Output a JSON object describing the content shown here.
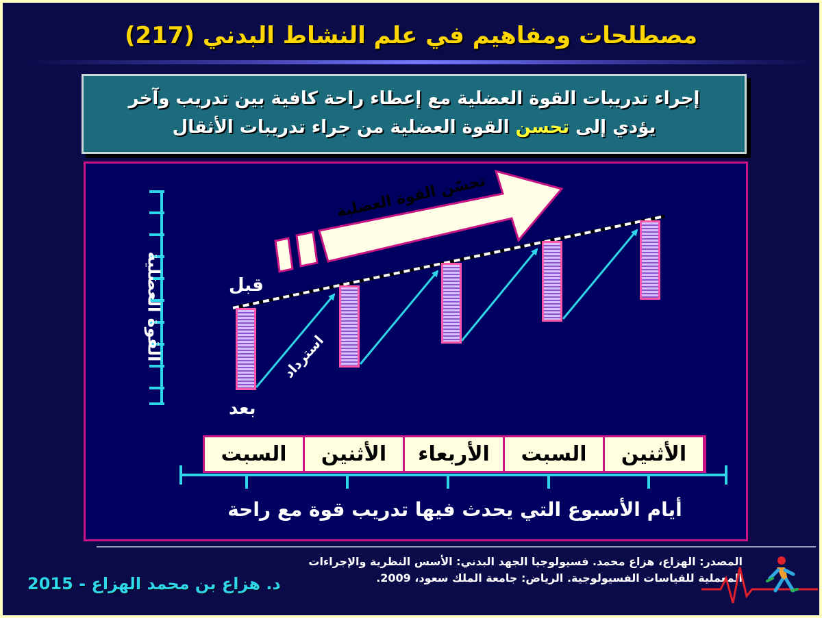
{
  "title": "مصطلحات ومفاهيم في علم النشاط البدني (217)",
  "intro": {
    "line1": "إجراء تدريبات القوة العضلية مع إعطاء راحة كافية بين تدريب وآخر",
    "line2_before": "يؤدي إلى ",
    "line2_highlight": "تحسن",
    "line2_after": " القوة العضلية من جراء تدريبات الأثقال"
  },
  "diagram": {
    "y_axis_label": "القوة العضلية",
    "before_label": "قبل",
    "after_label": "بعد",
    "recovery_label": "استرداد",
    "arrow_label": "تحسّن القوة العضلية",
    "days": [
      "الأثنين",
      "السبت",
      "الأربعاء",
      "الأثنين",
      "السبت"
    ],
    "x_axis_label": "أيام الأسبوع التي يحدث فيها تدريب قوة مع راحة"
  },
  "source": {
    "line1": "المصدر: الهزاع، هزاع محمد. فسيولوجيا الجهد البدني: الأسس النظرية والإجراءات",
    "line2": "المعملية للقياسات الفسيولوجية. الرياض: جامعة الملك سعود، 2009."
  },
  "author": "د. هزاع بن محمد الهزاع - 2015",
  "colors": {
    "background": "#0b0b4a",
    "title": "#ffd700",
    "intro_box": "#1b6b7d",
    "highlight": "#ffff33",
    "panel_border": "#c71585",
    "axis": "#2fd5e8",
    "author": "#2fd5e8"
  },
  "icons": [
    "running-person-logo",
    "ecg-line-icon"
  ]
}
